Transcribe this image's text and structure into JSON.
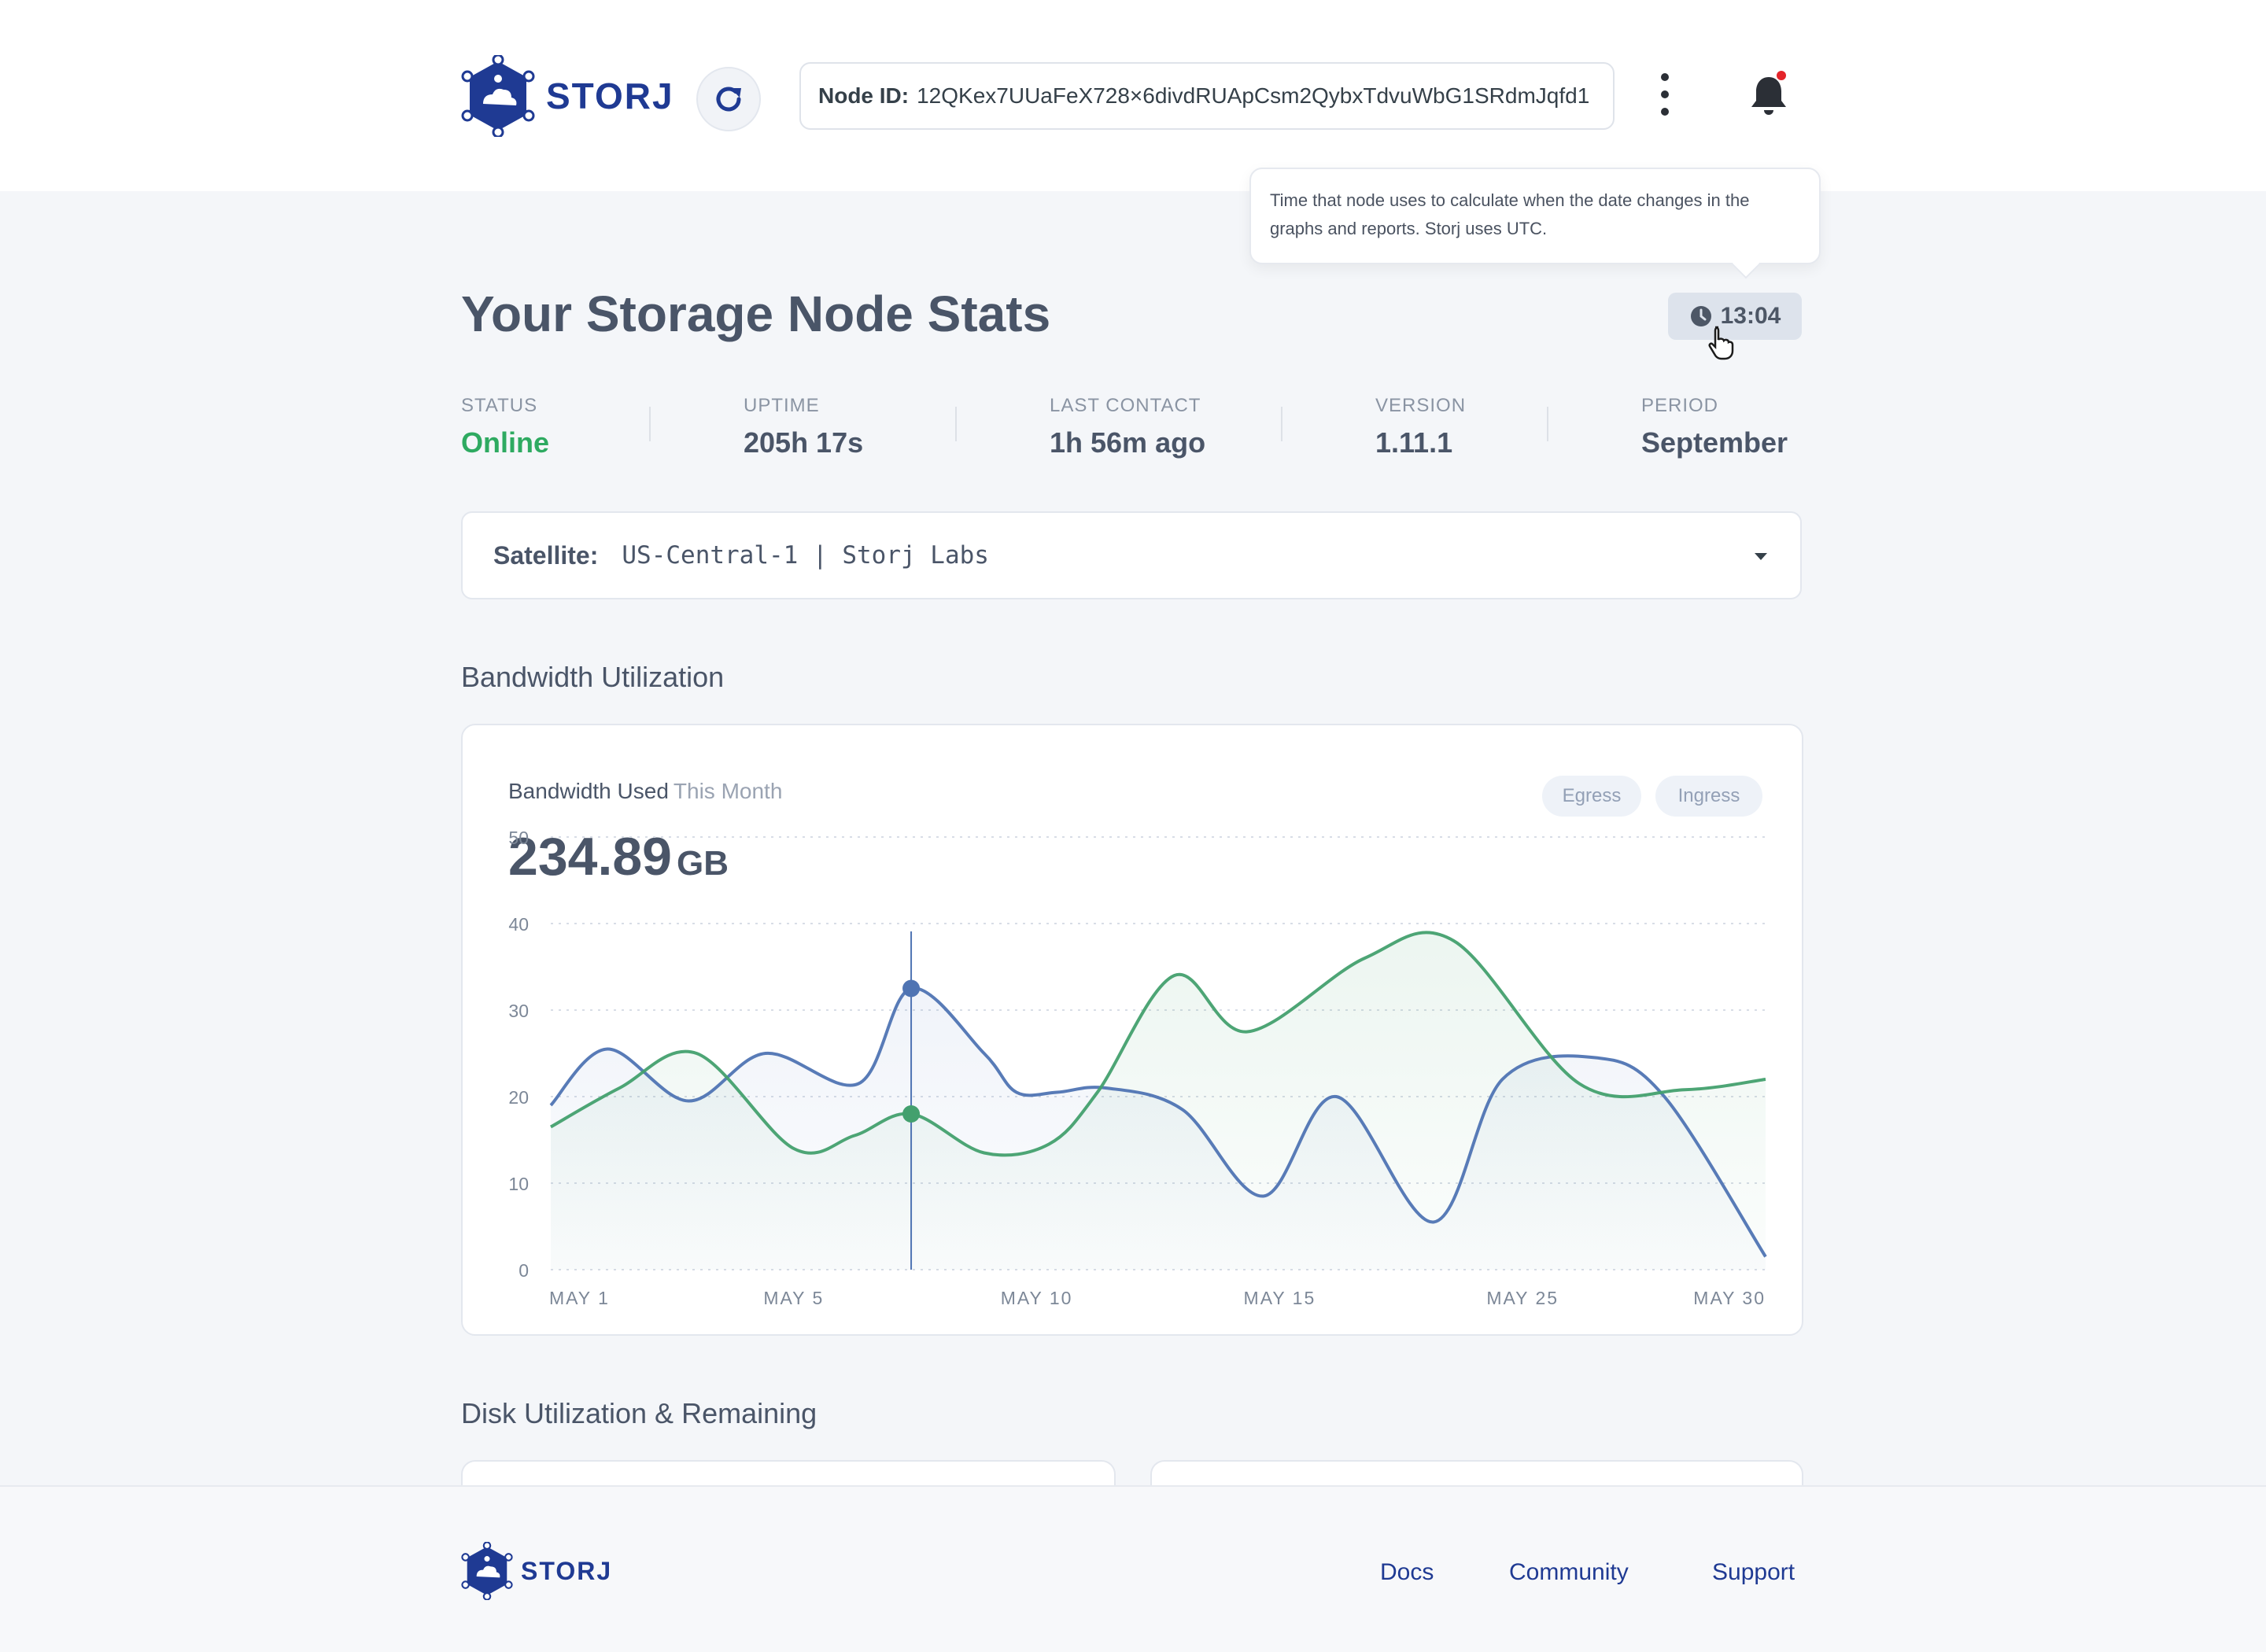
{
  "header": {
    "brand": "STORJ",
    "node_id_label": "Node ID:",
    "node_id_value": "12QKex7UUaFeX728×6divdRUApCsm2QybxTdvuWbG1SRdmJqfd1"
  },
  "tooltip": {
    "text": "Time that node uses to calculate when the date changes in the graphs and reports. Storj uses UTC."
  },
  "page": {
    "title": "Your Storage Node Stats",
    "time": "13:04"
  },
  "stats": [
    {
      "label": "STATUS",
      "value": "Online"
    },
    {
      "label": "UPTIME",
      "value": "205h 17s"
    },
    {
      "label": "LAST CONTACT",
      "value": "1h 56m ago"
    },
    {
      "label": "VERSION",
      "value": "1.11.1"
    },
    {
      "label": "PERIOD",
      "value": "September"
    }
  ],
  "satellite": {
    "label": "Satellite:",
    "value": "US-Central-1 | Storj Labs"
  },
  "bandwidth": {
    "section_title": "Bandwidth Utilization",
    "card_label": "Bandwidth Used",
    "card_period": "This Month",
    "total_value": "234.89",
    "total_unit": "GB",
    "legend": [
      "Egress",
      "Ingress"
    ]
  },
  "chart_data": {
    "type": "line",
    "yticks": [
      0,
      10,
      20,
      30,
      40,
      50
    ],
    "ylim": [
      0,
      52
    ],
    "xlim": [
      1,
      31
    ],
    "xtick_labels": [
      "MAY 1",
      "MAY 5",
      "MAY 10",
      "MAY 15",
      "MAY 25",
      "MAY 30"
    ],
    "highlight_x": 9.9,
    "series": [
      {
        "color": "#4f74b3",
        "x": [
          1,
          2.4,
          4.4,
          6.3,
          8.6,
          9.9,
          11.7,
          12.5,
          13.5,
          14.7,
          16.6,
          18.6,
          20.4,
          22.8,
          24.5,
          26.8,
          28.5,
          31
        ],
        "y": [
          19,
          25.5,
          19.5,
          25,
          21.5,
          32.5,
          25,
          20.5,
          20.5,
          21,
          18.5,
          8.5,
          20,
          5.5,
          22,
          24.5,
          20,
          1.5
        ]
      },
      {
        "color": "#43a06e",
        "x": [
          1,
          2.7,
          4.6,
          7,
          8.5,
          9.9,
          11.7,
          13.3,
          14.5,
          16.4,
          18.2,
          21.1,
          23.3,
          26.4,
          29,
          31
        ],
        "y": [
          16.5,
          21,
          25,
          14,
          15.5,
          18,
          13.5,
          14.5,
          20.5,
          34,
          27.5,
          36,
          38,
          21.5,
          20.8,
          22
        ]
      }
    ]
  },
  "disk": {
    "section_title": "Disk Utilization & Remaining"
  },
  "footer": {
    "brand": "STORJ",
    "links": [
      "Docs",
      "Community",
      "Support"
    ]
  }
}
